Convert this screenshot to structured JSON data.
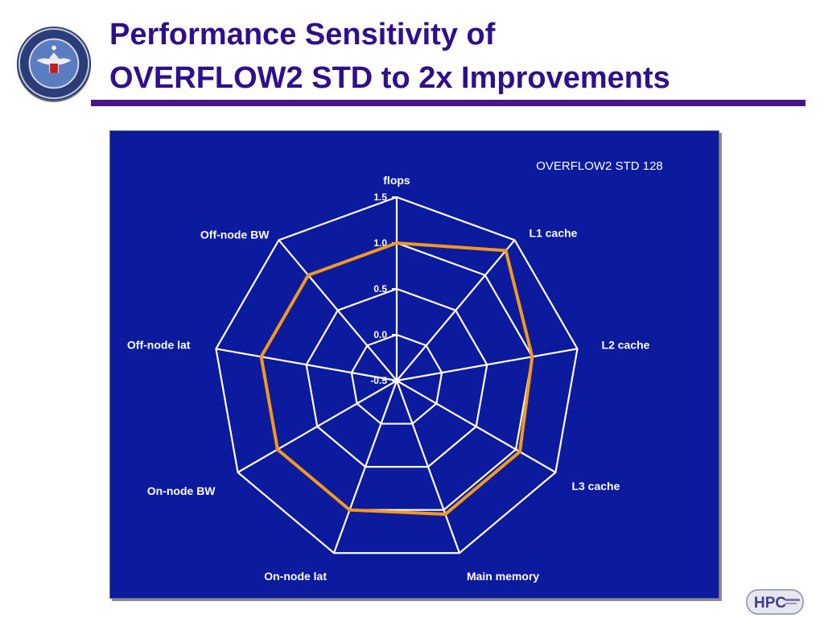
{
  "header": {
    "title_line1": "Performance Sensitivity of",
    "title_line2": "OVERFLOW2 STD to 2x Improvements"
  },
  "colors": {
    "title": "#2e0f8c",
    "rule": "#4b1487",
    "chart_background": "#0c1a9e",
    "grid": "#ffffff",
    "series": "#f39a1d"
  },
  "seal": {
    "icon": "department-of-defense-seal-icon",
    "text": "DEPARTMENT OF DEFENSE · UNITED STATES OF AMERICA"
  },
  "footer_logo": {
    "icon": "hpc-logo-icon",
    "text": "HPC"
  },
  "chart_data": {
    "type": "radar",
    "axes": [
      "flops",
      "L1 cache",
      "L2 cache",
      "L3 cache",
      "Main memory",
      "On-node lat",
      "On-node BW",
      "Off-node lat",
      "Off-node BW"
    ],
    "tick_labels": [
      "-0.5",
      "0.0",
      "0.5",
      "1.0",
      "1.5"
    ],
    "rlim": [
      -0.5,
      1.5
    ],
    "grid": true,
    "series": [
      {
        "name": "OVERFLOW2 STD 128",
        "values": [
          1.0,
          1.35,
          1.0,
          1.05,
          1.05,
          1.0,
          1.0,
          1.0,
          1.0
        ]
      }
    ],
    "legend": "top-right"
  }
}
